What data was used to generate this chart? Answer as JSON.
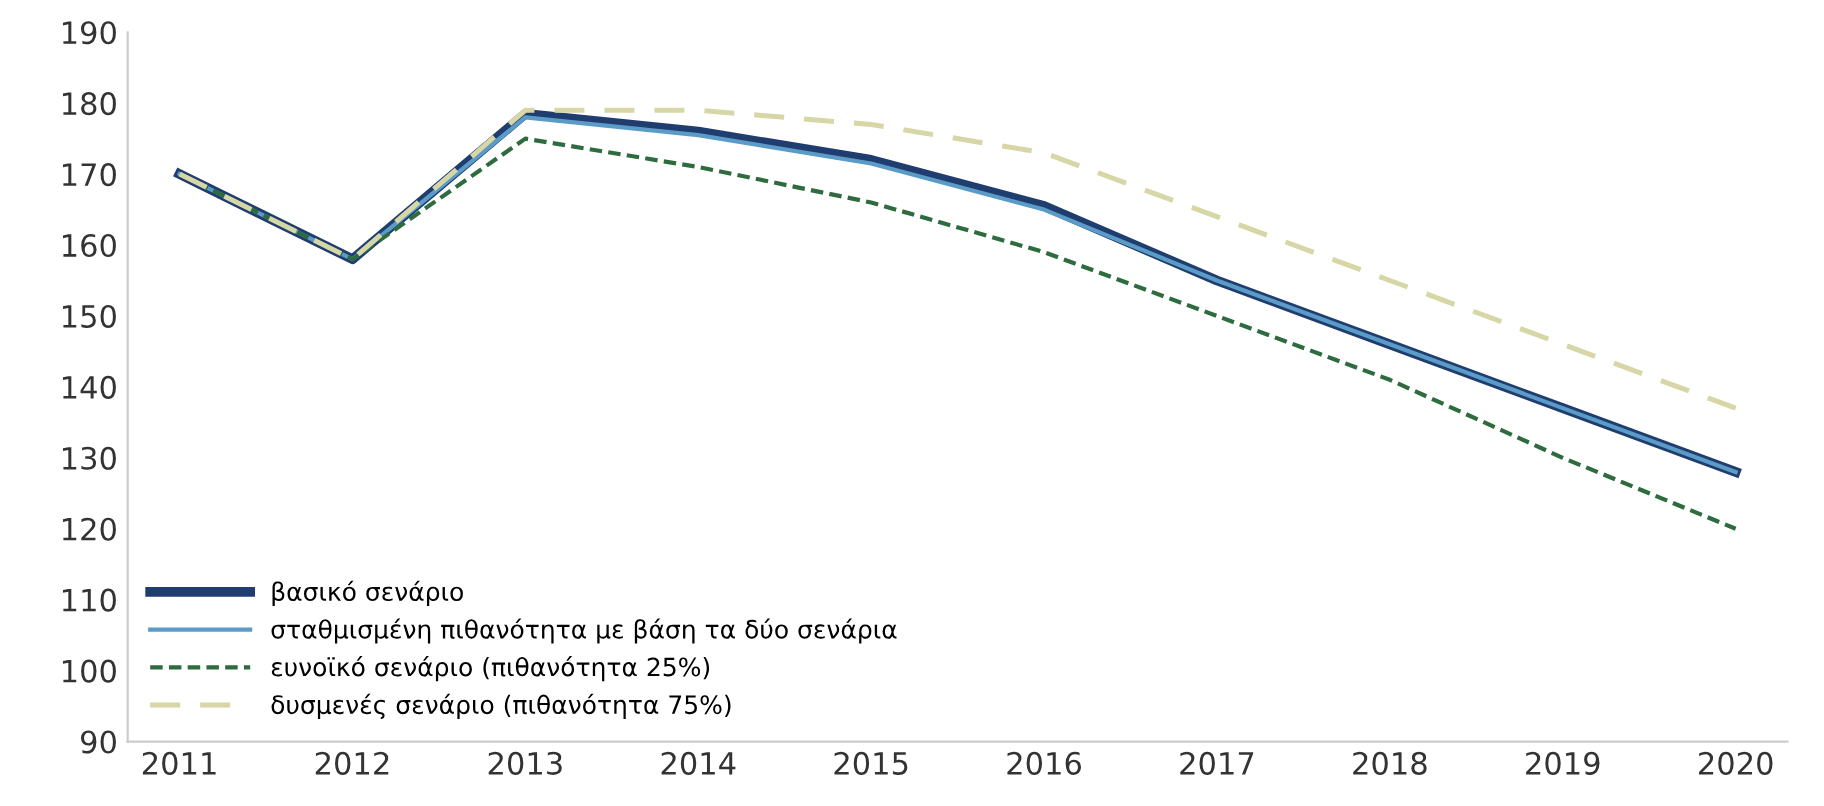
{
  "chart_data": {
    "type": "line",
    "categories": [
      "2011",
      "2012",
      "2013",
      "2014",
      "2015",
      "2016",
      "2017",
      "2018",
      "2019",
      "2020"
    ],
    "series": [
      {
        "name": "βασικό σενάριο",
        "color": "#1f3d6e",
        "line_style": "solid",
        "values": [
          170,
          158,
          178.5,
          176,
          172,
          165.5,
          155,
          146,
          137,
          128
        ]
      },
      {
        "name": "σταθμισμένη πιθανότητα με βάση τα δύο σενάρια",
        "color": "#5b9bc8",
        "line_style": "solid",
        "values": [
          170,
          158,
          178,
          175.5,
          171.5,
          165,
          155,
          146,
          137,
          128
        ]
      },
      {
        "name": "ευνοϊκό σενάριο (πιθανότητα 25%)",
        "color": "#2e6b3e",
        "line_style": "dashed",
        "values": [
          170,
          158,
          175,
          171,
          166,
          159,
          150,
          141,
          130,
          120
        ]
      },
      {
        "name": "δυσμενές σενάριο (πιθανότητα 75%)",
        "color": "#d6d6a6",
        "line_style": "dashed",
        "values": [
          170,
          158,
          179,
          179,
          177,
          173,
          164,
          155,
          146,
          137
        ]
      }
    ],
    "ylim": [
      90,
      190
    ],
    "yticks": [
      90,
      100,
      110,
      120,
      130,
      140,
      150,
      160,
      170,
      180,
      190
    ],
    "grid": false,
    "legend": "bottom left",
    "marker": "none"
  }
}
